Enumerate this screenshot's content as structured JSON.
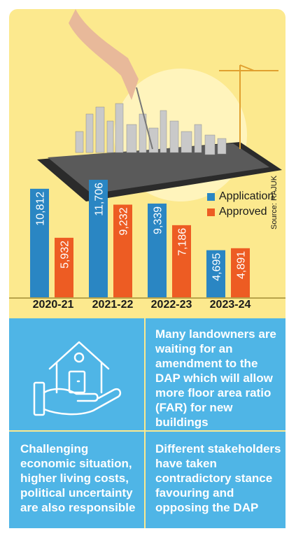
{
  "chart_data": {
    "type": "bar",
    "categories": [
      "2020-21",
      "2021-22",
      "2022-23",
      "2023-24"
    ],
    "series": [
      {
        "name": "Application",
        "values": [
          10812,
          11706,
          9339,
          4695
        ],
        "labels": [
          "10,812",
          "11,706",
          "9,339",
          "4,695"
        ],
        "color": "#2a86c3"
      },
      {
        "name": "Approved",
        "values": [
          5932,
          9232,
          7186,
          4891
        ],
        "labels": [
          "5,932",
          "9,232",
          "7,186",
          "4,891"
        ],
        "color": "#ed5c23"
      }
    ],
    "ylim": [
      0,
      12000
    ],
    "legend_position": "right",
    "source": "Source: RAJUK"
  },
  "colors": {
    "background": "#fce98e",
    "panel": "#4fb5e6",
    "application": "#2a86c3",
    "approved": "#ed5c23"
  },
  "icon": "house-in-hand-icon",
  "panels": {
    "top_right": "Many landowners are waiting for an amendment to the DAP which will allow more floor area ratio (FAR) for new buildings",
    "bottom_left": "Challenging economic situation, higher living costs, political uncertainty are also responsible",
    "bottom_right": "Different stakeholders have taken contradictory stance favouring and opposing the DAP"
  }
}
